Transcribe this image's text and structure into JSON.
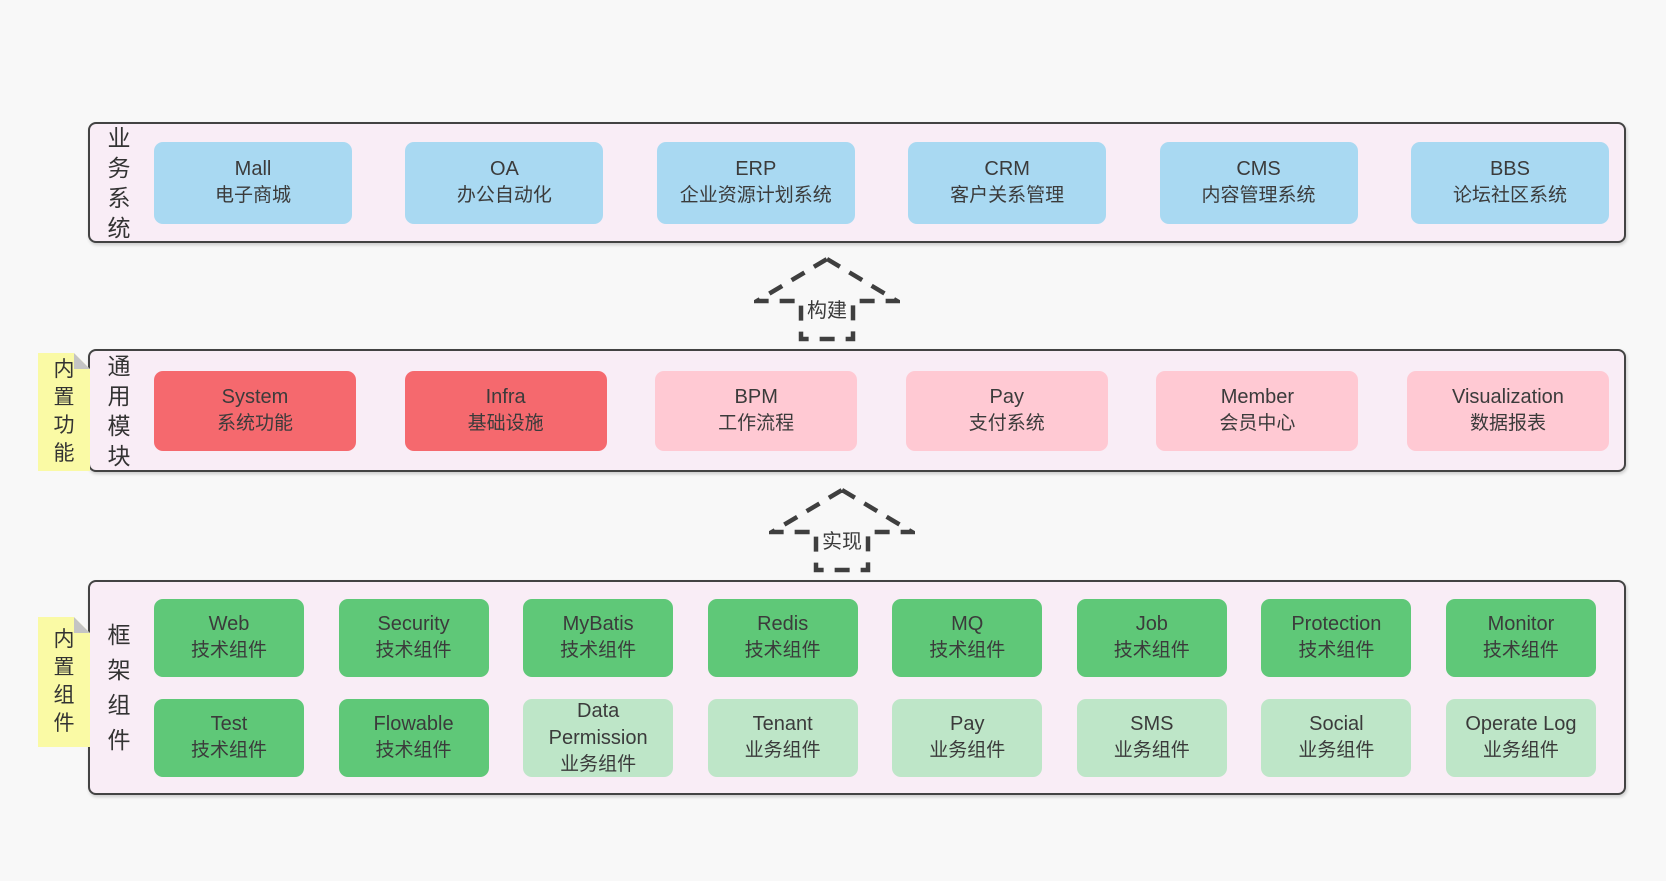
{
  "diagram_title": "architecture-stack-diagram",
  "colors": {
    "page_bg": "#f8f8f8",
    "band_bg": "#f9edf6",
    "band_border": "#434343",
    "blue": "#a9d9f2",
    "red": "#f5696e",
    "pink": "#ffc9d3",
    "green": "#5fc878",
    "light_green": "#bee6c8",
    "sticky_yellow": "#fafaa5",
    "fold_gray": "#c4c4c4",
    "text": "#3b3b3b"
  },
  "arrows": [
    {
      "label": "构建"
    },
    {
      "label": "实现"
    }
  ],
  "stickies": [
    {
      "label": "内置功能"
    },
    {
      "label": "内置组件"
    }
  ],
  "bands": [
    {
      "label": "业务系统",
      "rows": [
        [
          {
            "name": "Mall",
            "desc": "电子商城",
            "variant": "blue"
          },
          {
            "name": "OA",
            "desc": "办公自动化",
            "variant": "blue"
          },
          {
            "name": "ERP",
            "desc": "企业资源计划系统",
            "variant": "blue"
          },
          {
            "name": "CRM",
            "desc": "客户关系管理",
            "variant": "blue"
          },
          {
            "name": "CMS",
            "desc": "内容管理系统",
            "variant": "blue"
          },
          {
            "name": "BBS",
            "desc": "论坛社区系统",
            "variant": "blue"
          }
        ]
      ]
    },
    {
      "label": "通用模块",
      "rows": [
        [
          {
            "name": "System",
            "desc": "系统功能",
            "variant": "red"
          },
          {
            "name": "Infra",
            "desc": "基础设施",
            "variant": "red"
          },
          {
            "name": "BPM",
            "desc": "工作流程",
            "variant": "pink"
          },
          {
            "name": "Pay",
            "desc": "支付系统",
            "variant": "pink"
          },
          {
            "name": "Member",
            "desc": "会员中心",
            "variant": "pink"
          },
          {
            "name": "Visualization",
            "desc": "数据报表",
            "variant": "pink"
          }
        ]
      ]
    },
    {
      "label": "框架组件",
      "rows": [
        [
          {
            "name": "Web",
            "desc": "技术组件",
            "variant": "green"
          },
          {
            "name": "Security",
            "desc": "技术组件",
            "variant": "green"
          },
          {
            "name": "MyBatis",
            "desc": "技术组件",
            "variant": "green"
          },
          {
            "name": "Redis",
            "desc": "技术组件",
            "variant": "green"
          },
          {
            "name": "MQ",
            "desc": "技术组件",
            "variant": "green"
          },
          {
            "name": "Job",
            "desc": "技术组件",
            "variant": "green"
          },
          {
            "name": "Protection",
            "desc": "技术组件",
            "variant": "green"
          },
          {
            "name": "Monitor",
            "desc": "技术组件",
            "variant": "green"
          }
        ],
        [
          {
            "name": "Test",
            "desc": "技术组件",
            "variant": "green"
          },
          {
            "name": "Flowable",
            "desc": "技术组件",
            "variant": "green"
          },
          {
            "name": "Data Permission",
            "desc": "业务组件",
            "variant": "lightgreen"
          },
          {
            "name": "Tenant",
            "desc": "业务组件",
            "variant": "lightgreen"
          },
          {
            "name": "Pay",
            "desc": "业务组件",
            "variant": "lightgreen"
          },
          {
            "name": "SMS",
            "desc": "业务组件",
            "variant": "lightgreen"
          },
          {
            "name": "Social",
            "desc": "业务组件",
            "variant": "lightgreen"
          },
          {
            "name": "Operate Log",
            "desc": "业务组件",
            "variant": "lightgreen"
          }
        ]
      ]
    }
  ]
}
